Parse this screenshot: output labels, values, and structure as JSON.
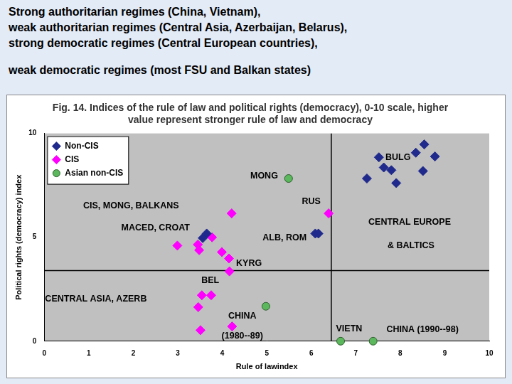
{
  "slide_text": [
    "Strong authoritarian regimes (China, Vietnam),",
    "weak authoritarian regimes (Central Asia, Azerbaijan, Belarus),",
    "strong democratic regimes (Central European countries),",
    "weak democratic regimes (most FSU and Balkan states)"
  ],
  "chart_data": {
    "type": "scatter",
    "title": [
      "Fig. 14. Indices of the rule of law and political rights (democracy), 0-10 scale, higher",
      "value represent stronger rule of law and democracy"
    ],
    "x_label": "Rule of lawindex",
    "y_label": "Political rights (democracy) index",
    "xlim": [
      0,
      10
    ],
    "ylim": [
      0,
      10
    ],
    "xticks": [
      0,
      1,
      2,
      3,
      4,
      5,
      6,
      7,
      8,
      9,
      10
    ],
    "yticks": [
      0,
      5,
      10
    ],
    "grid": false,
    "legend": "upper left",
    "series": [
      {
        "name": "Non-CIS",
        "color": "#1f2a8c",
        "marker": "diamond",
        "x": [
          7.52,
          7.25,
          7.63,
          7.8,
          7.91,
          8.35,
          8.54,
          8.78,
          8.51,
          6.09,
          6.16,
          3.56,
          3.65
        ],
        "y": [
          8.85,
          7.83,
          8.36,
          8.23,
          7.61,
          9.07,
          9.47,
          8.89,
          8.19,
          5.18,
          5.18,
          4.96,
          5.18
        ]
      },
      {
        "name": "CIS",
        "color": "#ff00ff",
        "marker": "diamond",
        "x": [
          2.99,
          3.45,
          3.48,
          3.77,
          4.21,
          3.99,
          4.15,
          4.16,
          6.39,
          3.54,
          3.75,
          3.46,
          3.51,
          4.22
        ],
        "y": [
          4.6,
          4.65,
          4.38,
          5.0,
          6.15,
          4.29,
          3.98,
          3.36,
          6.15,
          2.21,
          2.21,
          1.64,
          0.53,
          0.71
        ]
      },
      {
        "name": "Asian non-CIS",
        "color": "#5cb85c",
        "marker": "circle",
        "x": [
          5.49,
          4.98,
          6.66,
          7.39
        ],
        "y": [
          7.83,
          1.68,
          0,
          0
        ]
      }
    ],
    "reference_lines": {
      "x": [
        6.45
      ],
      "y": [
        3.4
      ]
    },
    "annotations": [
      {
        "text": "MONG",
        "x": 4.94,
        "y": 7.96
      },
      {
        "text": "CIS, MONG, BALKANS",
        "x": 1.95,
        "y": 6.5
      },
      {
        "text": "MACED, CROAT",
        "x": 2.5,
        "y": 5.45
      },
      {
        "text": "KYRG",
        "x": 4.6,
        "y": 3.75
      },
      {
        "text": "BEL",
        "x": 3.73,
        "y": 2.92
      },
      {
        "text": "CENTRAL ASIA, AZERB",
        "x": 1.16,
        "y": 2.04
      },
      {
        "text": "CHINA",
        "x": 4.45,
        "y": 1.2
      },
      {
        "text": "(1980--89)",
        "x": 4.45,
        "y": 0.25
      },
      {
        "text": "RUS",
        "x": 6.0,
        "y": 6.7
      },
      {
        "text": "ALB, ROM",
        "x": 5.4,
        "y": 4.96
      },
      {
        "text": "BULG",
        "x": 7.95,
        "y": 8.85
      },
      {
        "text": "CENTRAL EUROPE",
        "x": 8.21,
        "y": 5.71
      },
      {
        "text": "& BALTICS",
        "x": 8.24,
        "y": 4.6
      },
      {
        "text": "VIETN",
        "x": 6.85,
        "y": 0.6
      },
      {
        "text": "CHINA (1990--98)",
        "x": 8.5,
        "y": 0.55
      }
    ]
  }
}
